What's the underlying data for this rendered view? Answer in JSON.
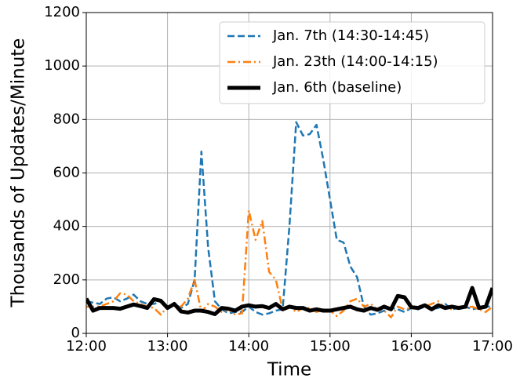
{
  "chart_data": {
    "type": "line",
    "x_label": "Time",
    "y_label": "Thousands of Updates/Minute",
    "x": [
      "12:00",
      "12:05",
      "12:10",
      "12:15",
      "12:20",
      "12:25",
      "12:30",
      "12:35",
      "12:40",
      "12:45",
      "12:50",
      "12:55",
      "13:00",
      "13:05",
      "13:10",
      "13:15",
      "13:20",
      "13:25",
      "13:30",
      "13:35",
      "13:40",
      "13:45",
      "13:50",
      "13:55",
      "14:00",
      "14:05",
      "14:10",
      "14:15",
      "14:20",
      "14:25",
      "14:30",
      "14:35",
      "14:40",
      "14:45",
      "14:50",
      "14:55",
      "15:00",
      "15:05",
      "15:10",
      "15:15",
      "15:20",
      "15:25",
      "15:30",
      "15:35",
      "15:40",
      "15:45",
      "15:50",
      "15:55",
      "16:00",
      "16:05",
      "16:10",
      "16:15",
      "16:20",
      "16:25",
      "16:30",
      "16:35",
      "16:40",
      "16:45",
      "16:50",
      "16:55",
      "17:00"
    ],
    "series": [
      {
        "name": "Jan. 7th (14:30-14:45)",
        "color": "#1f77b4",
        "dash": "dashed",
        "width": 2.5,
        "values": [
          120,
          115,
          110,
          130,
          135,
          120,
          130,
          145,
          120,
          110,
          110,
          120,
          100,
          110,
          95,
          110,
          200,
          680,
          320,
          120,
          90,
          75,
          80,
          80,
          100,
          80,
          70,
          75,
          85,
          90,
          400,
          790,
          740,
          745,
          780,
          650,
          500,
          350,
          340,
          250,
          210,
          100,
          70,
          75,
          85,
          95,
          90,
          80,
          95,
          90,
          100,
          90,
          95,
          110,
          90,
          95,
          100,
          90,
          95,
          100,
          100
        ]
      },
      {
        "name": "Jan. 23th (14:00-14:15)",
        "color": "#ff7f0e",
        "dash": "dashdot",
        "width": 2.5,
        "values": [
          100,
          100,
          100,
          110,
          120,
          150,
          145,
          120,
          110,
          100,
          95,
          70,
          100,
          110,
          100,
          130,
          200,
          80,
          110,
          100,
          80,
          90,
          70,
          75,
          460,
          350,
          420,
          230,
          200,
          90,
          100,
          80,
          95,
          95,
          80,
          90,
          85,
          65,
          85,
          120,
          130,
          100,
          110,
          90,
          85,
          60,
          100,
          90,
          95,
          95,
          100,
          110,
          120,
          95,
          90,
          100,
          95,
          100,
          90,
          80,
          100
        ]
      },
      {
        "name": "Jan. 6th (baseline)",
        "color": "#000000",
        "dash": "solid",
        "width": 5,
        "values": [
          130,
          85,
          95,
          95,
          95,
          92,
          100,
          108,
          102,
          95,
          128,
          122,
          95,
          110,
          82,
          78,
          85,
          85,
          80,
          72,
          95,
          92,
          85,
          100,
          105,
          100,
          102,
          95,
          110,
          90,
          100,
          95,
          95,
          85,
          90,
          85,
          85,
          90,
          95,
          100,
          90,
          85,
          95,
          88,
          100,
          90,
          140,
          135,
          98,
          95,
          105,
          90,
          105,
          95,
          100,
          95,
          100,
          170,
          95,
          100,
          170
        ]
      }
    ],
    "xlim": [
      "12:00",
      "17:00"
    ],
    "xticks": [
      "12:00",
      "13:00",
      "14:00",
      "15:00",
      "16:00",
      "17:00"
    ],
    "ylim": [
      0,
      1200
    ],
    "yticks": [
      0,
      200,
      400,
      600,
      800,
      1000,
      1200
    ],
    "grid": true,
    "legend": "upper right"
  }
}
